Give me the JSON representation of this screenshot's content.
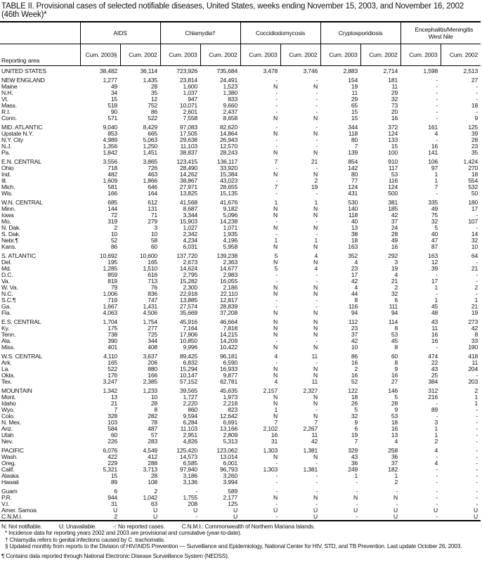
{
  "title": "TABLE II. Provisional cases of selected notifiable diseases, United States, weeks ending November 15, 2003, and November 16, 2002 (46th Week)*",
  "header": {
    "reporting_area": "Reporting area",
    "groups": [
      "AIDS",
      "Chlamydia†",
      "Coccidiodomycosis",
      "Cryptosporidiosis",
      "Encephalitis/Meningitis West Nile"
    ],
    "subcolumns": [
      "Cum. 2003§",
      "Cum. 2002",
      "Cum. 2003",
      "Cum. 2002",
      "Cum. 2003",
      "Cum. 2002",
      "Cum. 2003",
      "Cum. 2002",
      "Cum. 2003",
      "Cum. 2002"
    ]
  },
  "groups": [
    [
      [
        "UNITED STATES",
        "38,482",
        "36,114",
        "723,926",
        "735,684",
        "3,478",
        "3,746",
        "2,883",
        "2,714",
        "1,598",
        "2,513"
      ]
    ],
    [
      [
        "NEW ENGLAND",
        "1,277",
        "1,435",
        "23,814",
        "24,491",
        "-",
        "-",
        "154",
        "181",
        "-",
        "27"
      ],
      [
        "Maine",
        "49",
        "28",
        "1,600",
        "1,523",
        "N",
        "N",
        "19",
        "11",
        "-",
        "-"
      ],
      [
        "N.H.",
        "34",
        "35",
        "1,037",
        "1,380",
        "-",
        "-",
        "11",
        "29",
        "-",
        "-"
      ],
      [
        "Vt.",
        "15",
        "12",
        "947",
        "833",
        "-",
        "-",
        "29",
        "32",
        "-",
        "-"
      ],
      [
        "Mass.",
        "518",
        "752",
        "10,071",
        "9,660",
        "-",
        "-",
        "65",
        "73",
        "-",
        "18"
      ],
      [
        "R.I.",
        "90",
        "86",
        "2,601",
        "2,437",
        "-",
        "-",
        "15",
        "20",
        "-",
        "-"
      ],
      [
        "Conn.",
        "571",
        "522",
        "7,558",
        "8,658",
        "N",
        "N",
        "15",
        "16",
        "-",
        "9"
      ]
    ],
    [
      [
        "MID. ATLANTIC",
        "9,040",
        "8,429",
        "97,083",
        "82,620",
        "-",
        "-",
        "344",
        "372",
        "161",
        "125"
      ],
      [
        "Upstate N.Y.",
        "853",
        "665",
        "17,505",
        "14,864",
        "N",
        "N",
        "118",
        "124",
        "4",
        "39"
      ],
      [
        "N.Y. City",
        "4,989",
        "5,063",
        "29,638",
        "26,943",
        "-",
        "-",
        "80",
        "133",
        "-",
        "28"
      ],
      [
        "N.J.",
        "1,356",
        "1,250",
        "11,103",
        "12,570",
        "-",
        "-",
        "7",
        "15",
        "16",
        "23"
      ],
      [
        "Pa.",
        "1,842",
        "1,451",
        "38,837",
        "28,243",
        "N",
        "N",
        "139",
        "100",
        "141",
        "35"
      ]
    ],
    [
      [
        "E.N. CENTRAL",
        "3,556",
        "3,865",
        "123,415",
        "136,117",
        "7",
        "21",
        "854",
        "910",
        "106",
        "1,424"
      ],
      [
        "Ohio",
        "718",
        "726",
        "28,490",
        "33,920",
        "-",
        "-",
        "142",
        "117",
        "97",
        "270"
      ],
      [
        "Ind.",
        "482",
        "463",
        "14,262",
        "15,384",
        "N",
        "N",
        "80",
        "53",
        "1",
        "18"
      ],
      [
        "Ill.",
        "1,609",
        "1,866",
        "38,867",
        "43,023",
        "-",
        "2",
        "77",
        "116",
        "1",
        "554"
      ],
      [
        "Mich.",
        "581",
        "646",
        "27,971",
        "28,655",
        "7",
        "19",
        "124",
        "124",
        "7",
        "532"
      ],
      [
        "Wis.",
        "166",
        "164",
        "13,825",
        "15,135",
        "-",
        "-",
        "431",
        "500",
        "-",
        "50"
      ]
    ],
    [
      [
        "W.N. CENTRAL",
        "685",
        "612",
        "41,568",
        "41,676",
        "1",
        "1",
        "530",
        "381",
        "335",
        "180"
      ],
      [
        "Minn.",
        "144",
        "131",
        "8,687",
        "9,182",
        "N",
        "N",
        "140",
        "185",
        "49",
        "17"
      ],
      [
        "Iowa",
        "72",
        "71",
        "3,344",
        "5,096",
        "N",
        "N",
        "118",
        "42",
        "75",
        "-"
      ],
      [
        "Mo.",
        "319",
        "279",
        "15,903",
        "14,238",
        "-",
        "-",
        "40",
        "37",
        "32",
        "107"
      ],
      [
        "N. Dak.",
        "2",
        "3",
        "1,027",
        "1,071",
        "N",
        "N",
        "13",
        "24",
        "5",
        "-"
      ],
      [
        "S. Dak.",
        "10",
        "10",
        "2,342",
        "1,935",
        "-",
        "-",
        "38",
        "28",
        "40",
        "14"
      ],
      [
        "Nebr.¶",
        "52",
        "58",
        "4,234",
        "4,196",
        "1",
        "1",
        "18",
        "49",
        "47",
        "32"
      ],
      [
        "Kans.",
        "86",
        "60",
        "6,031",
        "5,958",
        "N",
        "N",
        "163",
        "16",
        "87",
        "10"
      ]
    ],
    [
      [
        "S. ATLANTIC",
        "10,692",
        "10,600",
        "137,720",
        "139,238",
        "5",
        "4",
        "352",
        "292",
        "163",
        "64"
      ],
      [
        "Del.",
        "195",
        "165",
        "2,673",
        "2,363",
        "N",
        "N",
        "4",
        "3",
        "12",
        "-"
      ],
      [
        "Md.",
        "1,285",
        "1,510",
        "14,624",
        "14,677",
        "5",
        "4",
        "23",
        "19",
        "39",
        "21"
      ],
      [
        "D.C.",
        "859",
        "616",
        "2,795",
        "2,983",
        "-",
        "-",
        "17",
        "4",
        "-",
        "-"
      ],
      [
        "Va.",
        "819",
        "713",
        "15,282",
        "16,055",
        "-",
        "-",
        "42",
        "21",
        "17",
        "-"
      ],
      [
        "W. Va.",
        "79",
        "76",
        "2,300",
        "2,186",
        "N",
        "N",
        "4",
        "2",
        "1",
        "2"
      ],
      [
        "N.C.",
        "1,006",
        "836",
        "22,918",
        "22,110",
        "N",
        "N",
        "44",
        "32",
        "-",
        "-"
      ],
      [
        "S.C.¶",
        "719",
        "747",
        "13,885",
        "12,817",
        "-",
        "-",
        "8",
        "6",
        "1",
        "1"
      ],
      [
        "Ga.",
        "1,667",
        "1,431",
        "27,574",
        "28,839",
        "-",
        "-",
        "116",
        "111",
        "45",
        "21"
      ],
      [
        "Fla.",
        "4,063",
        "4,506",
        "35,669",
        "37,208",
        "N",
        "N",
        "94",
        "94",
        "48",
        "19"
      ]
    ],
    [
      [
        "E.S. CENTRAL",
        "1,704",
        "1,754",
        "45,916",
        "46,664",
        "N",
        "N",
        "112",
        "114",
        "43",
        "273"
      ],
      [
        "Ky.",
        "175",
        "277",
        "7,164",
        "7,818",
        "N",
        "N",
        "23",
        "8",
        "11",
        "42"
      ],
      [
        "Tenn.",
        "738",
        "725",
        "17,906",
        "14,215",
        "N",
        "N",
        "37",
        "53",
        "16",
        "8"
      ],
      [
        "Ala.",
        "390",
        "344",
        "10,850",
        "14,209",
        "-",
        "-",
        "42",
        "45",
        "16",
        "33"
      ],
      [
        "Miss.",
        "401",
        "408",
        "9,996",
        "10,422",
        "N",
        "N",
        "10",
        "8",
        "-",
        "190"
      ]
    ],
    [
      [
        "W.S. CENTRAL",
        "4,110",
        "3,637",
        "89,425",
        "96,181",
        "4",
        "11",
        "86",
        "60",
        "474",
        "418"
      ],
      [
        "Ark.",
        "165",
        "206",
        "6,832",
        "6,590",
        "-",
        "-",
        "16",
        "8",
        "22",
        "11"
      ],
      [
        "La.",
        "522",
        "880",
        "15,294",
        "16,933",
        "N",
        "N",
        "2",
        "9",
        "43",
        "204"
      ],
      [
        "Okla.",
        "176",
        "166",
        "10,147",
        "9,877",
        "N",
        "N",
        "16",
        "16",
        "25",
        "-"
      ],
      [
        "Tex.",
        "3,247",
        "2,385",
        "57,152",
        "62,781",
        "4",
        "11",
        "52",
        "27",
        "384",
        "203"
      ]
    ],
    [
      [
        "MOUNTAIN",
        "1,342",
        "1,233",
        "39,565",
        "45,635",
        "2,157",
        "2,327",
        "122",
        "146",
        "312",
        "2"
      ],
      [
        "Mont.",
        "13",
        "10",
        "1,727",
        "1,973",
        "N",
        "N",
        "18",
        "5",
        "216",
        "1"
      ],
      [
        "Idaho",
        "21",
        "28",
        "2,220",
        "2,218",
        "N",
        "N",
        "26",
        "28",
        "-",
        "1"
      ],
      [
        "Wyo.",
        "7",
        "8",
        "860",
        "823",
        "1",
        "-",
        "5",
        "9",
        "89",
        "-"
      ],
      [
        "Colo.",
        "328",
        "282",
        "9,594",
        "12,642",
        "N",
        "N",
        "32",
        "53",
        "-",
        "-"
      ],
      [
        "N. Mex.",
        "103",
        "78",
        "6,284",
        "6,691",
        "7",
        "7",
        "9",
        "18",
        "3",
        "-"
      ],
      [
        "Ariz.",
        "584",
        "487",
        "11,103",
        "13,166",
        "2,102",
        "2,267",
        "6",
        "16",
        "1",
        "-"
      ],
      [
        "Utah",
        "60",
        "57",
        "2,951",
        "2,809",
        "16",
        "11",
        "19",
        "13",
        "1",
        "-"
      ],
      [
        "Nev.",
        "226",
        "283",
        "4,826",
        "5,313",
        "31",
        "42",
        "7",
        "4",
        "2",
        "-"
      ]
    ],
    [
      [
        "PACIFIC",
        "6,076",
        "4,549",
        "125,420",
        "123,062",
        "1,303",
        "1,381",
        "329",
        "258",
        "4",
        "-"
      ],
      [
        "Wash.",
        "422",
        "412",
        "14,573",
        "13,014",
        "N",
        "N",
        "43",
        "36",
        "-",
        "-"
      ],
      [
        "Oreg.",
        "229",
        "288",
        "6,585",
        "6,001",
        "-",
        "-",
        "36",
        "37",
        "4",
        "-"
      ],
      [
        "Calif.",
        "5,321",
        "3,713",
        "97,940",
        "96,793",
        "1,303",
        "1,381",
        "249",
        "182",
        "-",
        "-"
      ],
      [
        "Alaska",
        "15",
        "28",
        "3,186",
        "3,260",
        "-",
        "-",
        "1",
        "1",
        "-",
        "-"
      ],
      [
        "Hawaii",
        "89",
        "108",
        "3,136",
        "3,994",
        "-",
        "-",
        "-",
        "2",
        "-",
        "-"
      ]
    ],
    [
      [
        "Guam",
        "6",
        "2",
        "-",
        "589",
        "-",
        "-",
        "-",
        "-",
        "-",
        "-"
      ],
      [
        "P.R.",
        "944",
        "1,042",
        "1,755",
        "2,177",
        "N",
        "N",
        "N",
        "N",
        "-",
        "-"
      ],
      [
        "V.I.",
        "31",
        "63",
        "208",
        "125",
        "-",
        "-",
        "-",
        "-",
        "-",
        "-"
      ],
      [
        "Amer. Samoa",
        "U",
        "U",
        "U",
        "U",
        "U",
        "U",
        "U",
        "U",
        "U",
        "U"
      ],
      [
        "C.N.M.I.",
        "2",
        "U",
        "-",
        "U",
        "-",
        "U",
        "-",
        "U",
        "-",
        "U"
      ]
    ]
  ],
  "footnotes": {
    "legend": [
      "N: Not notifiable.",
      "U: Unavailable.",
      "-: No reported cases.",
      "C.N.M.I.: Commonwealth of Northern Mariana Islands."
    ],
    "notes": [
      "* Incidence data for reporting years 2002 and 2003 are provisional and cumulative (year-to-date).",
      "† Chlamydia refers to genital infections caused by C. trachomatis.",
      "§ Updated monthly from reports to the Division of HIV/AIDS Prevention — Surveillance and Epidemiology, National Center for HIV, STD, and TB Prevention. Last update October 26, 2003.",
      "¶ Contains data reported through National Electronic Disease Surveillance System (NEDSS)."
    ]
  }
}
